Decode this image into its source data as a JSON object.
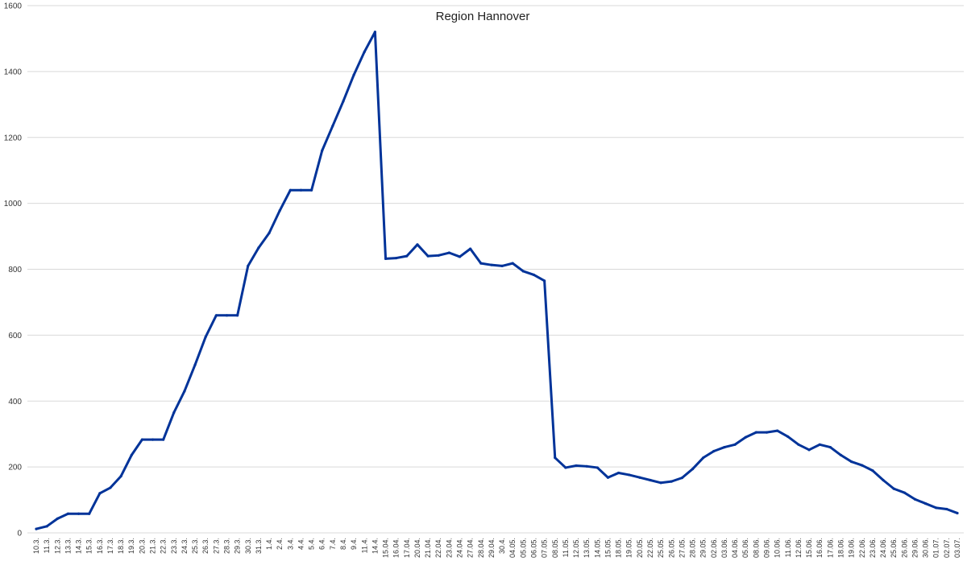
{
  "chart_data": {
    "type": "line",
    "title": "Region Hannover",
    "xlabel": "",
    "ylabel": "",
    "ylim": [
      0,
      1600
    ],
    "yticks": [
      0,
      200,
      400,
      600,
      800,
      1000,
      1200,
      1400,
      1600
    ],
    "grid": true,
    "legend": "none",
    "line_color": "#003399",
    "categories": [
      "10.3.",
      "11.3.",
      "12.3.",
      "13.3.",
      "14.3.",
      "15.3.",
      "16.3.",
      "17.3.",
      "18.3.",
      "19.3.",
      "20.3.",
      "21.3.",
      "22.3.",
      "23.3.",
      "24.3.",
      "25.3.",
      "26.3.",
      "27.3.",
      "28.3.",
      "29.3.",
      "30.3.",
      "31.3.",
      "1.4.",
      "2.4.",
      "3.4.",
      "4.4.",
      "5.4.",
      "6.4.",
      "7.4.",
      "8.4.",
      "9.4.",
      "11.4.",
      "14.4.",
      "15.04.",
      "16.04.",
      "17.04.",
      "20.04.",
      "21.04.",
      "22.04.",
      "23.04.",
      "24.04.",
      "27.04.",
      "28.04.",
      "29.04.",
      "30.4.",
      "04.05.",
      "05.05.",
      "06.05.",
      "07.05.",
      "08.05.",
      "11.05.",
      "12.05.",
      "13.05.",
      "14.05.",
      "15.05.",
      "18.05.",
      "19.05.",
      "20.05.",
      "22.05.",
      "25.05.",
      "26.05.",
      "27.05.",
      "28.05.",
      "29.05.",
      "02.06.",
      "03.06.",
      "04.06.",
      "05.06.",
      "08.06.",
      "09.06.",
      "10.06.",
      "11.06.",
      "12.06.",
      "15.06.",
      "16.06.",
      "17.06.",
      "18.06.",
      "19.06.",
      "22.06.",
      "23.06.",
      "24.06.",
      "25.06.",
      "26.06.",
      "29.06.",
      "30.06.",
      "01.07.",
      "02.07.",
      "03.07."
    ],
    "values": [
      12,
      20,
      43,
      58,
      58,
      58,
      120,
      137,
      172,
      236,
      283,
      283,
      283,
      365,
      430,
      510,
      595,
      660,
      660,
      660,
      810,
      865,
      910,
      978,
      1040,
      1040,
      1040,
      1160,
      1235,
      1310,
      1390,
      1460,
      1520,
      832,
      834,
      840,
      875,
      840,
      842,
      850,
      838,
      862,
      818,
      813,
      810,
      818,
      794,
      783,
      765,
      228,
      198,
      204,
      202,
      198,
      168,
      182,
      176,
      168,
      160,
      152,
      156,
      167,
      194,
      228,
      248,
      260,
      268,
      290,
      305,
      305,
      310,
      292,
      268,
      252,
      268,
      260,
      236,
      216,
      205,
      189,
      160,
      134,
      122,
      102,
      89,
      76,
      72,
      60
    ]
  }
}
